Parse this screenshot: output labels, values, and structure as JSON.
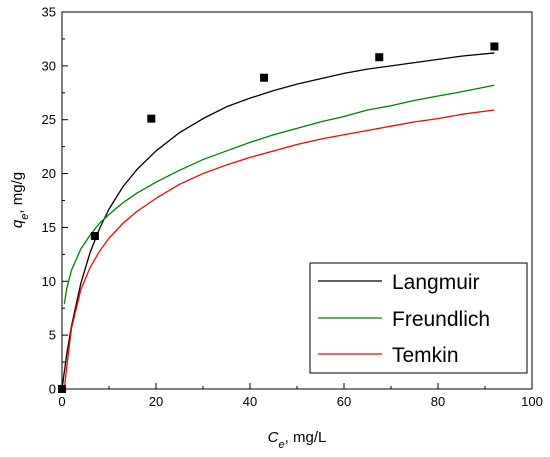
{
  "chart_data": {
    "type": "scatter",
    "title": "",
    "xlabel": {
      "symbol": "C",
      "subscript": "e",
      "unit": ", mg/L"
    },
    "ylabel": {
      "symbol": "q",
      "subscript": "e",
      "unit": ", mg/g"
    },
    "xlim": [
      0,
      100
    ],
    "ylim": [
      0,
      35
    ],
    "xticks": [
      0,
      20,
      40,
      60,
      80,
      100
    ],
    "yticks": [
      0,
      5,
      10,
      15,
      20,
      25,
      30,
      35
    ],
    "grid": false,
    "legend_position": "bottom-right",
    "experimental_points": {
      "x": [
        0,
        7,
        19,
        43,
        67.5,
        92
      ],
      "y": [
        0,
        14.2,
        25.1,
        28.9,
        30.8,
        31.8
      ],
      "marker": "square",
      "color": "#000000"
    },
    "series": [
      {
        "name": "Langmuir",
        "color": "#000000",
        "x": [
          0,
          1,
          2,
          4,
          6,
          8,
          10,
          13,
          16,
          20,
          25,
          30,
          35,
          40,
          45,
          50,
          55,
          60,
          65,
          70,
          75,
          80,
          85,
          92
        ],
        "y": [
          0,
          3.2,
          5.8,
          9.8,
          12.7,
          14.9,
          16.7,
          18.8,
          20.4,
          22.1,
          23.8,
          25.1,
          26.2,
          27.0,
          27.7,
          28.3,
          28.8,
          29.3,
          29.7,
          30.0,
          30.3,
          30.6,
          30.9,
          31.2
        ]
      },
      {
        "name": "Freundlich",
        "color": "#008000",
        "x": [
          0.5,
          1,
          2,
          4,
          6,
          8,
          10,
          13,
          16,
          20,
          25,
          30,
          35,
          40,
          45,
          50,
          55,
          60,
          65,
          70,
          75,
          80,
          85,
          92
        ],
        "y": [
          7.9,
          9.3,
          11.0,
          13.0,
          14.3,
          15.4,
          16.2,
          17.3,
          18.2,
          19.2,
          20.3,
          21.3,
          22.1,
          22.9,
          23.6,
          24.2,
          24.8,
          25.3,
          25.9,
          26.3,
          26.8,
          27.2,
          27.6,
          28.2
        ]
      },
      {
        "name": "Temkin",
        "color": "#ff0000",
        "x": [
          0.5,
          1,
          2,
          4,
          6,
          8,
          10,
          13,
          16,
          20,
          25,
          30,
          35,
          40,
          45,
          50,
          55,
          60,
          65,
          70,
          75,
          80,
          85,
          92
        ],
        "y": [
          0,
          2.0,
          5.6,
          9.2,
          11.3,
          12.8,
          14.0,
          15.4,
          16.5,
          17.7,
          19.0,
          20.0,
          20.8,
          21.5,
          22.1,
          22.7,
          23.2,
          23.6,
          24.0,
          24.4,
          24.8,
          25.1,
          25.5,
          25.9
        ]
      }
    ]
  }
}
